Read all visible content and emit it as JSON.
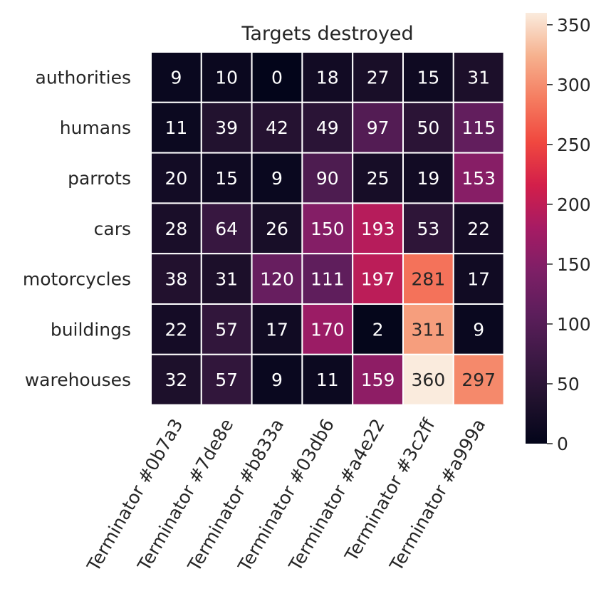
{
  "chart_data": {
    "type": "heatmap",
    "title": "Targets destroyed",
    "xlabel": "",
    "ylabel": "",
    "rows": [
      "authorities",
      "humans",
      "parrots",
      "cars",
      "motorcycles",
      "buildings",
      "warehouses"
    ],
    "columns": [
      "Terminator #0b7a3",
      "Terminator #7de8e",
      "Terminator #b833a",
      "Terminator #03db6",
      "Terminator #a4e22",
      "Terminator #3c2ff",
      "Terminator #a999a"
    ],
    "values": [
      [
        9,
        10,
        0,
        18,
        27,
        15,
        31
      ],
      [
        11,
        39,
        42,
        49,
        97,
        50,
        115
      ],
      [
        20,
        15,
        9,
        90,
        25,
        19,
        153
      ],
      [
        28,
        64,
        26,
        150,
        193,
        53,
        22
      ],
      [
        38,
        31,
        120,
        111,
        197,
        281,
        17
      ],
      [
        22,
        57,
        17,
        170,
        2,
        311,
        9
      ],
      [
        32,
        57,
        9,
        11,
        159,
        360,
        297
      ]
    ],
    "colorbar": {
      "min": 0,
      "max": 360,
      "ticks": [
        "0",
        "50",
        "100",
        "150",
        "200",
        "250",
        "300",
        "350"
      ],
      "colormap": "rocket"
    },
    "annotations": "cell values shown",
    "grid": false,
    "legend": "colorbar right"
  }
}
